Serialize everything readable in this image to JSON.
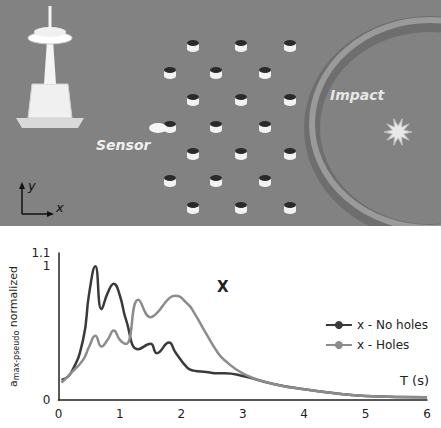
{
  "illustration": {
    "labels": {
      "impact": "Impact",
      "sensor": "Sensor",
      "axis_x": "x",
      "axis_y": "y"
    }
  },
  "chart_data": {
    "type": "line",
    "title": "X",
    "xlabel": "T (s)",
    "ylabel": {
      "main": "a",
      "subscript": "max-pseudo",
      "rest": " normalized"
    },
    "x": [
      0.05,
      0.2,
      0.4,
      0.5,
      0.6,
      0.7,
      0.8,
      0.9,
      1.0,
      1.1,
      1.3,
      1.5,
      1.6,
      1.8,
      1.9,
      2.1,
      2.2,
      2.4,
      2.6,
      2.7,
      3.0,
      3.5,
      4.0,
      4.5,
      5.0,
      6.0
    ],
    "series": [
      {
        "name": "x - No holes",
        "color": "#3a3a3a",
        "values": [
          0.15,
          0.2,
          0.45,
          0.8,
          1.0,
          0.68,
          0.8,
          0.87,
          0.78,
          0.6,
          0.38,
          0.42,
          0.35,
          0.43,
          0.36,
          0.24,
          0.22,
          0.21,
          0.2,
          0.2,
          0.18,
          0.12,
          0.08,
          0.05,
          0.03,
          0.02
        ]
      },
      {
        "name": "x - Holes",
        "color": "#8c8c8c",
        "values": [
          0.13,
          0.2,
          0.3,
          0.4,
          0.48,
          0.4,
          0.45,
          0.52,
          0.45,
          0.42,
          0.75,
          0.62,
          0.65,
          0.76,
          0.78,
          0.72,
          0.66,
          0.5,
          0.35,
          0.3,
          0.2,
          0.12,
          0.08,
          0.05,
          0.03,
          0.02
        ]
      }
    ],
    "xlim": [
      0,
      6
    ],
    "xticks": [
      0,
      1,
      2,
      3,
      4,
      5,
      6
    ],
    "ylim": [
      0,
      1.1
    ],
    "yticks": [
      0,
      1
    ],
    "grid": false,
    "legend": "right"
  }
}
